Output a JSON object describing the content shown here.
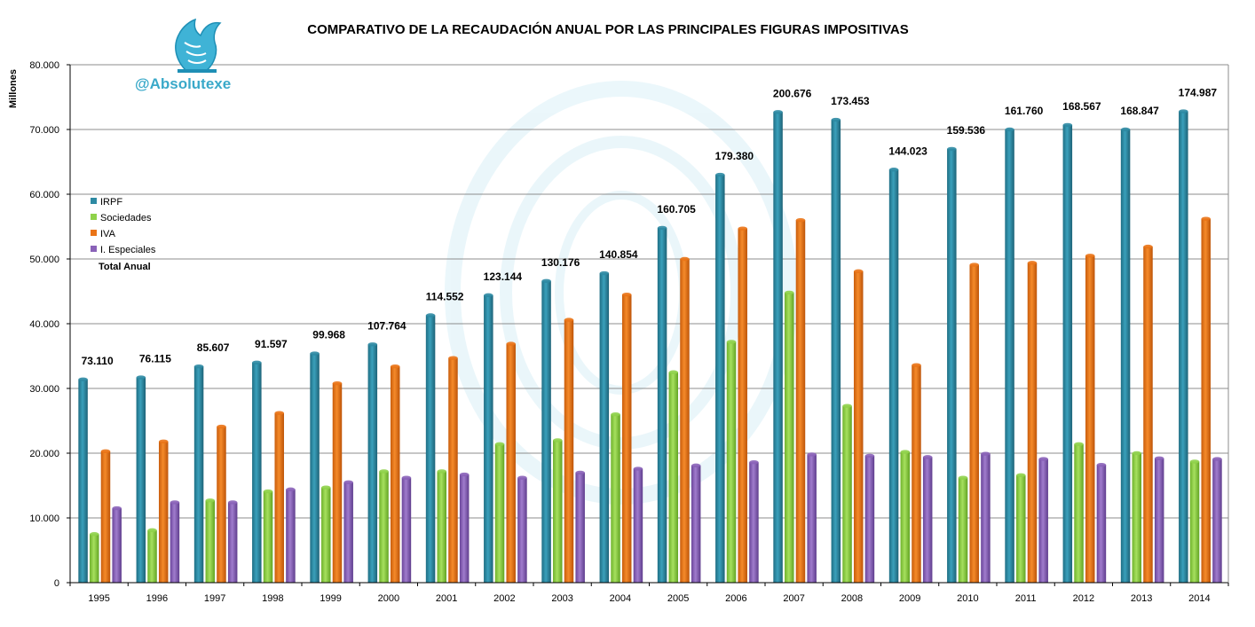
{
  "colors": {
    "IRPF": "#2e8aa3",
    "Sociedades": "#8fd24a",
    "IVA": "#ea7417",
    "I. Especiales": "#8a62b8",
    "grid": "#8c8c8c",
    "handle": "#3aa9c9",
    "logo": "#3fb3d6"
  },
  "logo": {
    "icon": "eagle-logo-icon",
    "handle": "@Absolutexe"
  },
  "chart_data": {
    "type": "bar",
    "title": "COMPARATIVO DE LA RECAUDACIÓN ANUAL POR LAS PRINCIPALES FIGURAS IMPOSITIVAS",
    "xlabel": "",
    "ylabel": "Millones",
    "ylim": [
      0,
      80000
    ],
    "yticks": [
      0,
      10000,
      20000,
      30000,
      40000,
      50000,
      60000,
      70000,
      80000
    ],
    "ytick_labels": [
      "0",
      "10.000",
      "20.000",
      "30.000",
      "40.000",
      "50.000",
      "60.000",
      "70.000",
      "80.000"
    ],
    "grid": true,
    "legend_position": "left",
    "categories": [
      "1995",
      "1996",
      "1997",
      "1998",
      "1999",
      "2000",
      "2001",
      "2002",
      "2003",
      "2004",
      "2005",
      "2006",
      "2007",
      "2008",
      "2009",
      "2010",
      "2011",
      "2012",
      "2013",
      "2014"
    ],
    "series": [
      {
        "name": "IRPF",
        "values": [
          31400,
          31700,
          33400,
          34000,
          35400,
          36800,
          41300,
          44400,
          46600,
          47800,
          54800,
          63000,
          72700,
          71500,
          63800,
          67000,
          70000,
          70700,
          70000,
          72800
        ]
      },
      {
        "name": "Sociedades",
        "values": [
          7500,
          8100,
          12700,
          14100,
          14700,
          17200,
          17200,
          21400,
          22000,
          26000,
          32500,
          37200,
          44800,
          27300,
          20200,
          16200,
          16600,
          21400,
          20000,
          18700
        ]
      },
      {
        "name": "IVA",
        "values": [
          20300,
          21800,
          24100,
          26200,
          30800,
          33400,
          34700,
          36900,
          40600,
          44500,
          50000,
          54700,
          56000,
          48100,
          33600,
          49100,
          49400,
          50500,
          51900,
          56200
        ]
      },
      {
        "name": "I. Especiales",
        "values": [
          11500,
          12400,
          12400,
          14400,
          15500,
          16200,
          16700,
          16200,
          17000,
          17600,
          18100,
          18600,
          19800,
          19600,
          19400,
          19900,
          19100,
          18200,
          19200,
          19100
        ]
      }
    ],
    "legend_extra": "Total Anual",
    "totals": [
      "73.110",
      "76.115",
      "85.607",
      "91.597",
      "99.968",
      "107.764",
      "114.552",
      "123.144",
      "130.176",
      "140.854",
      "160.705",
      "179.380",
      "200.676",
      "173.453",
      "144.023",
      "159.536",
      "161.760",
      "168.567",
      "168.847",
      "174.987"
    ]
  }
}
